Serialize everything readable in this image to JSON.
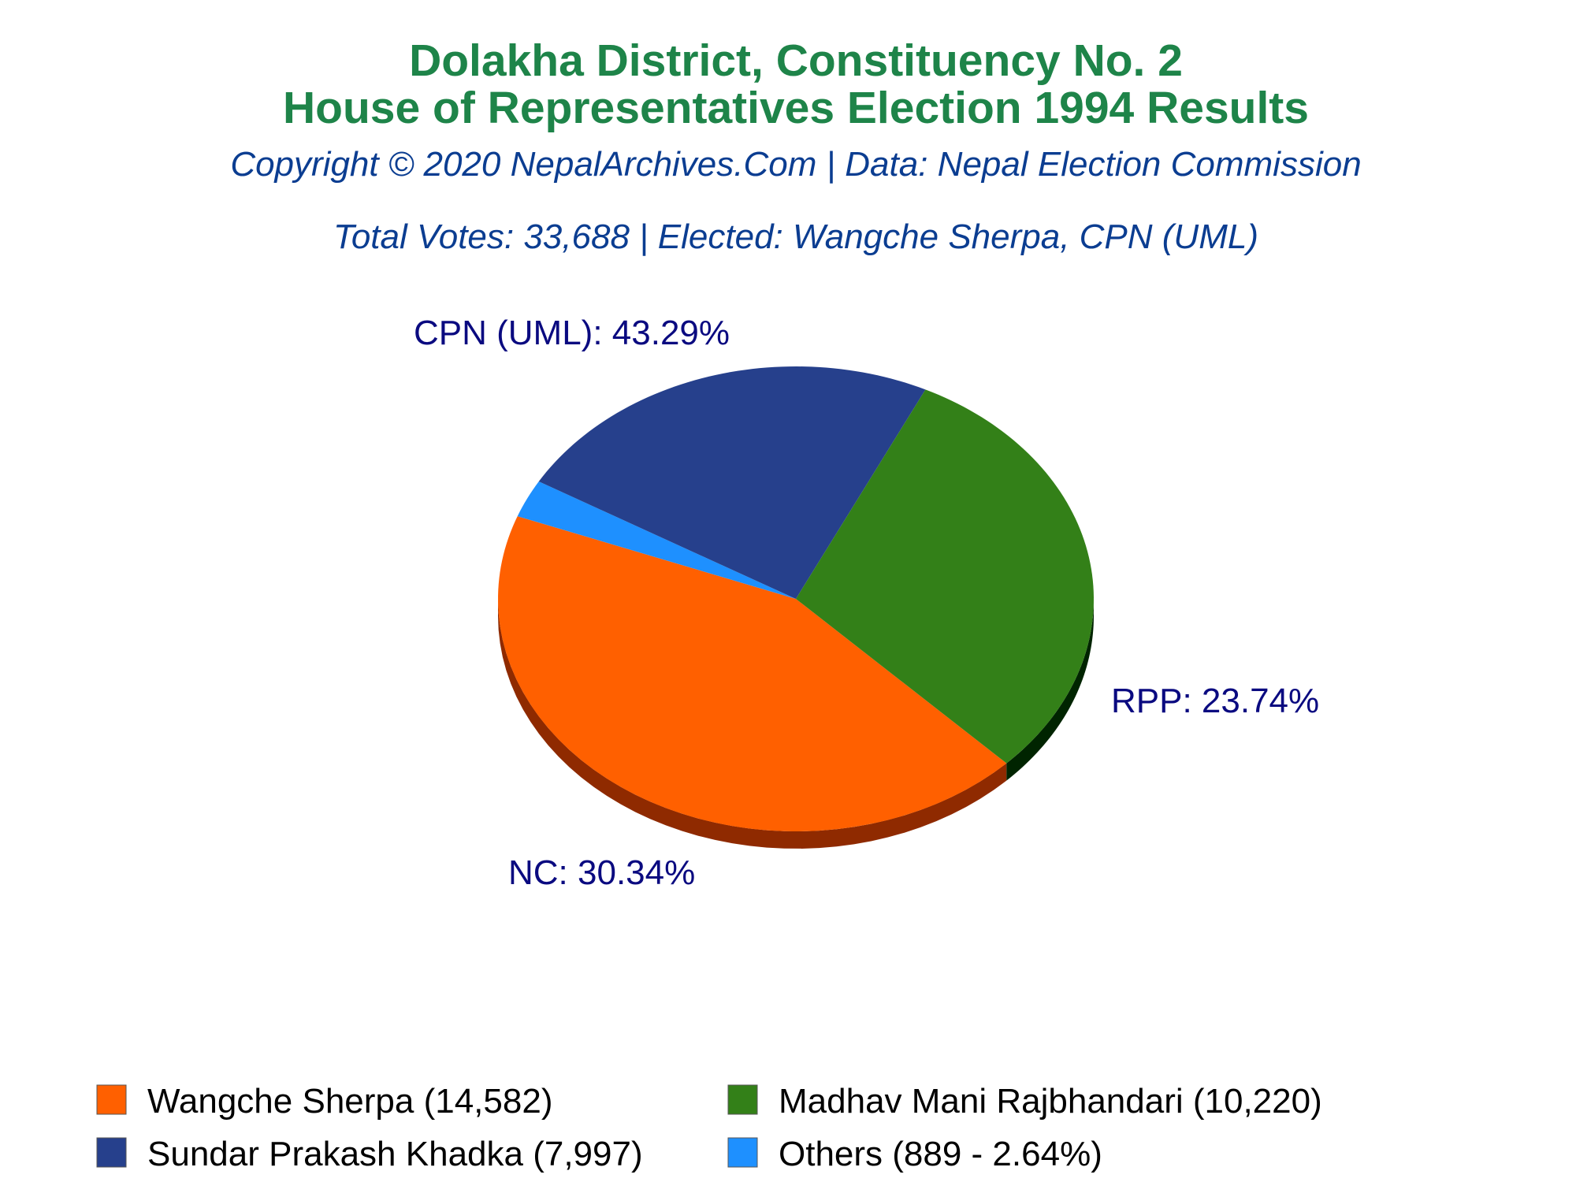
{
  "chart_data": {
    "type": "pie",
    "title_line1": "Dolakha District, Constituency No. 2",
    "title_line2": "House of Representatives Election 1994 Results",
    "copyright": "Copyright © 2020 NepalArchives.Com | Data: Nepal Election Commission",
    "summary": "Total Votes: 33,688 | Elected: Wangche Sherpa, CPN (UML)",
    "slices": [
      {
        "label": "CPN (UML): 43.29%",
        "party": "CPN (UML)",
        "value": 43.29,
        "color": "#ff6000",
        "side_color": "#8f2a00"
      },
      {
        "label": "",
        "party": "Others",
        "value": 2.64,
        "color": "#1e90ff",
        "side_color": "#0a4c8c"
      },
      {
        "label": "RPP: 23.74%",
        "party": "RPP",
        "value": 23.74,
        "color": "#26408c",
        "side_color": "#000038"
      },
      {
        "label": "NC: 30.34%",
        "party": "NC",
        "value": 30.34,
        "color": "#338018",
        "side_color": "#002400"
      }
    ],
    "legend": [
      {
        "text": "Wangche Sherpa (14,582)",
        "color": "#ff6000"
      },
      {
        "text": "Madhav Mani Rajbhandari (10,220)",
        "color": "#338018"
      },
      {
        "text": "Sundar Prakash Khadka (7,997)",
        "color": "#26408c"
      },
      {
        "text": "Others (889 - 2.64%)",
        "color": "#1e90ff"
      }
    ]
  }
}
